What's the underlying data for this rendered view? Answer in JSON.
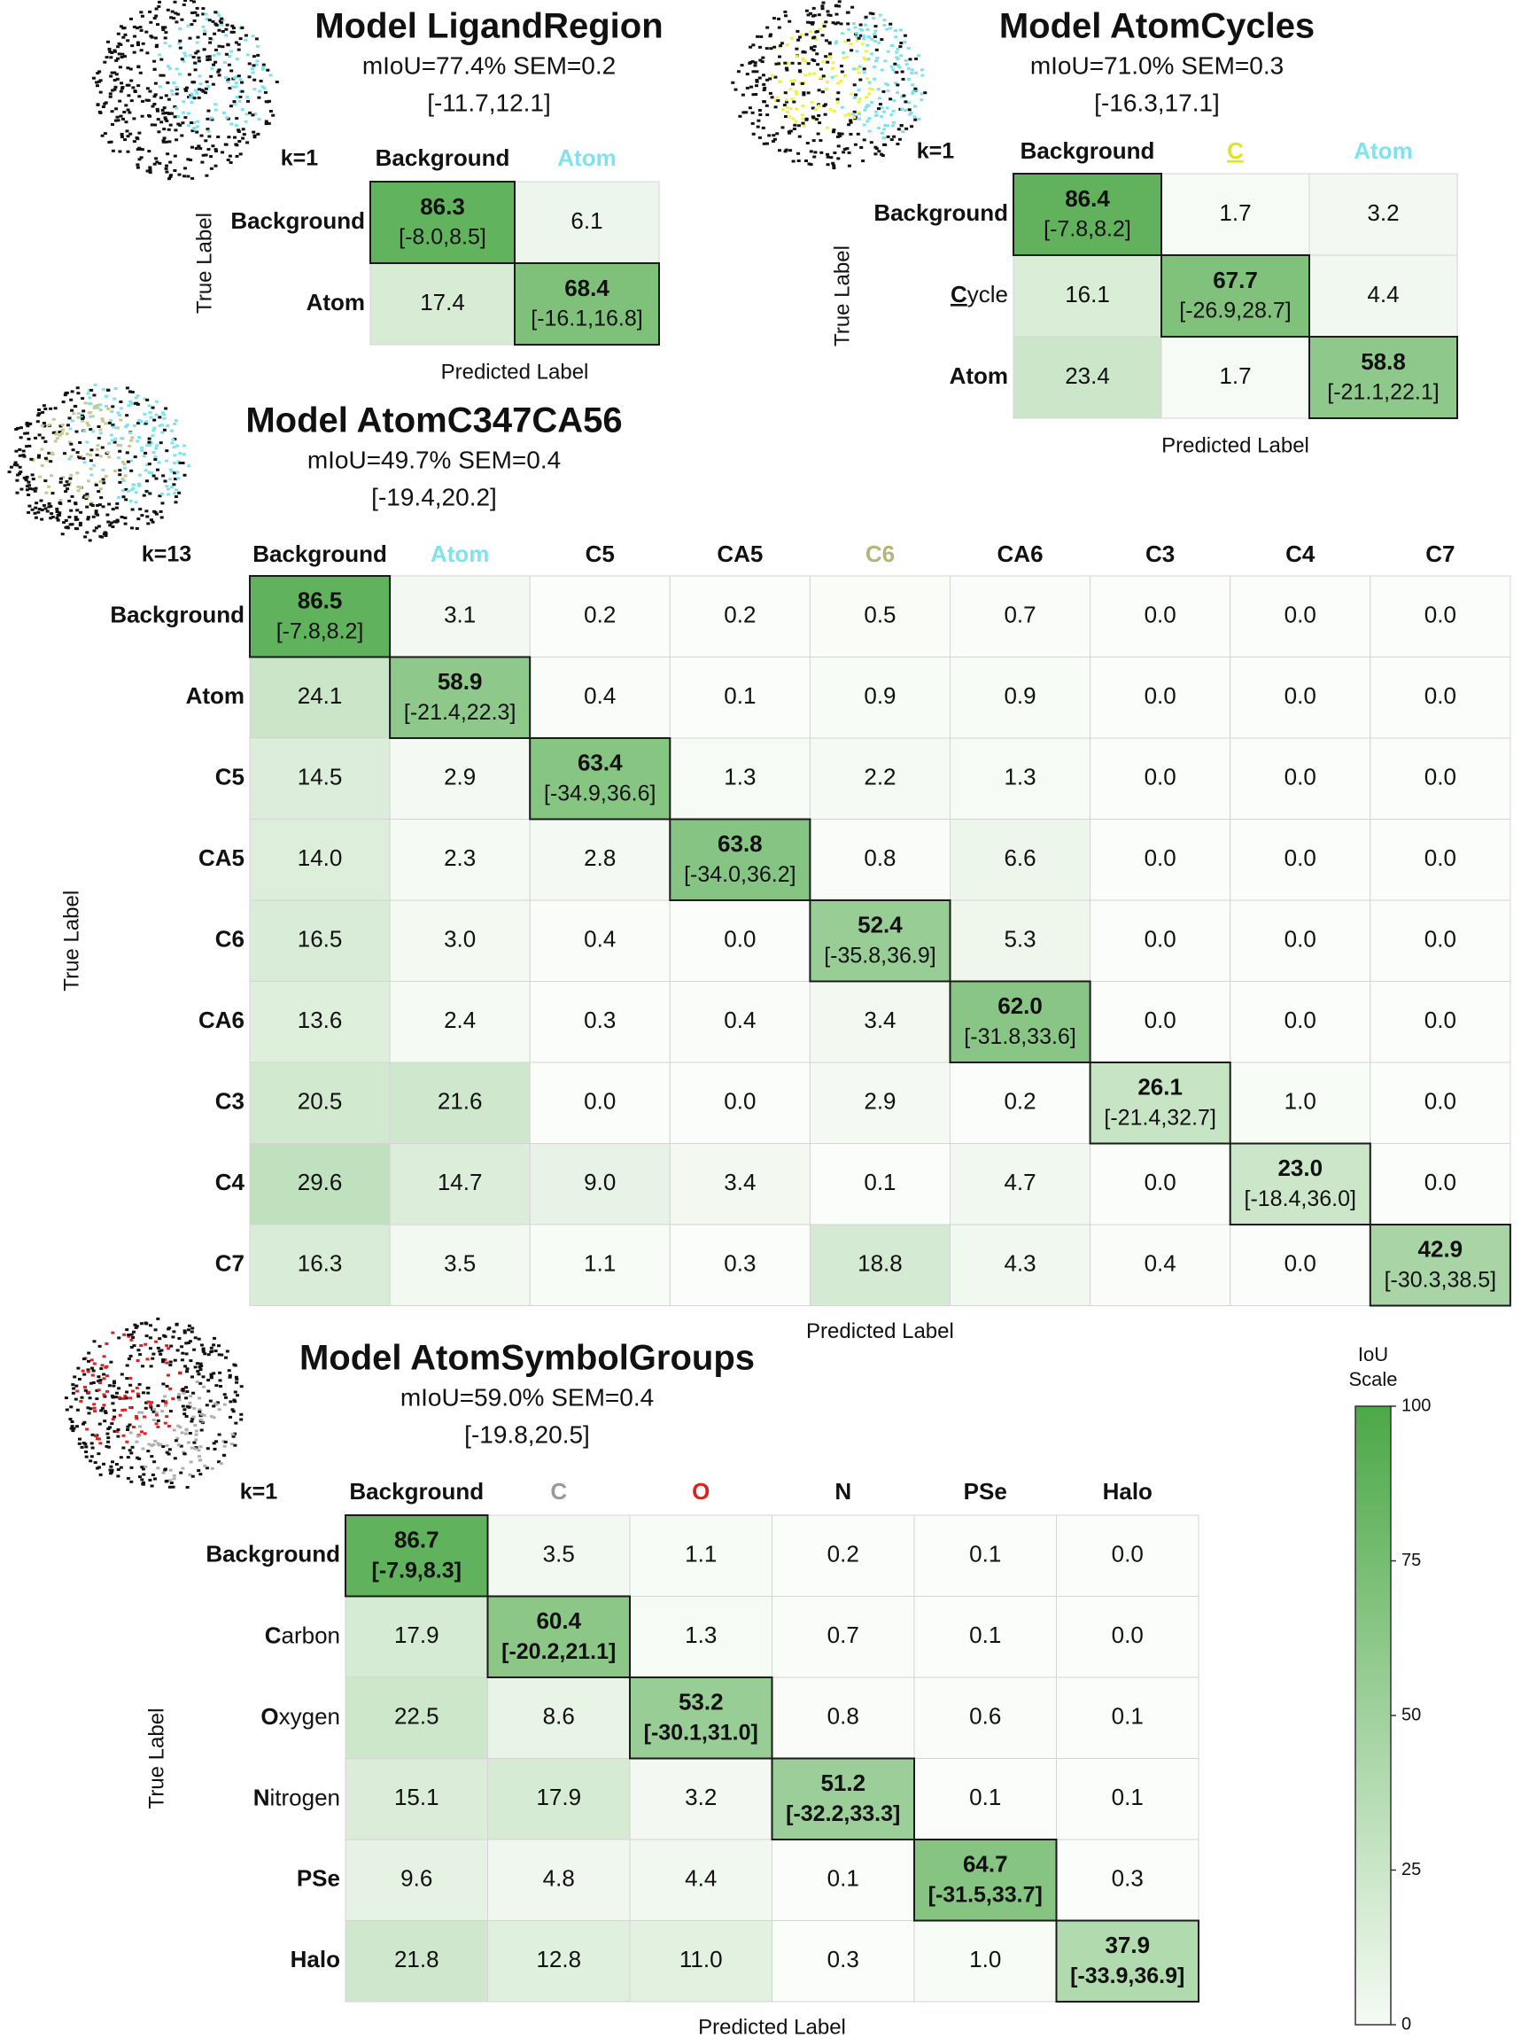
{
  "chart_data": [
    {
      "type": "heatmap",
      "title": "Model LigandRegion",
      "metrics": "mIoU=77.4% SEM=0.2",
      "range": "[-11.7,12.1]",
      "k_label": "k=1",
      "xlabel": "Predicted Label",
      "ylabel": "True Label",
      "columns": [
        {
          "label": "Background",
          "color": "#111111"
        },
        {
          "label": "Atom",
          "color": "#7fe3ee"
        }
      ],
      "rows": [
        {
          "label": "Background"
        },
        {
          "label": "Atom"
        }
      ],
      "values": [
        [
          86.3,
          6.1
        ],
        [
          17.4,
          68.4
        ]
      ],
      "diagonal_ci": [
        "[-8.0,8.5]",
        "[-16.1,16.8]"
      ],
      "diagonal_ci_bold": false
    },
    {
      "type": "heatmap",
      "title": "Model AtomCycles",
      "metrics": "mIoU=71.0% SEM=0.3",
      "range": "[-16.3,17.1]",
      "k_label": "k=1",
      "xlabel": "Predicted Label",
      "ylabel": "True Label",
      "columns": [
        {
          "label": "Background",
          "color": "#111111"
        },
        {
          "label": "C",
          "color": "#e3e322",
          "underline": true
        },
        {
          "label": "Atom",
          "color": "#7fe3ee"
        }
      ],
      "rows": [
        {
          "label": "Background"
        },
        {
          "label": "Cycle",
          "underline_first": true,
          "plain_rest": true
        },
        {
          "label": "Atom"
        }
      ],
      "values": [
        [
          86.4,
          1.7,
          3.2
        ],
        [
          16.1,
          67.7,
          4.4
        ],
        [
          23.4,
          1.7,
          58.8
        ]
      ],
      "diagonal_ci": [
        "[-7.8,8.2]",
        "[-26.9,28.7]",
        "[-21.1,22.1]"
      ],
      "diagonal_ci_bold": false
    },
    {
      "type": "heatmap",
      "title": "Model AtomC347CA56",
      "metrics": "mIoU=49.7% SEM=0.4",
      "range": "[-19.4,20.2]",
      "k_label": "k=13",
      "xlabel": "Predicted Label",
      "ylabel": "True Label",
      "columns": [
        {
          "label": "Background",
          "color": "#111111"
        },
        {
          "label": "Atom",
          "color": "#7fe3ee"
        },
        {
          "label": "C5",
          "color": "#111111"
        },
        {
          "label": "CA5",
          "color": "#111111"
        },
        {
          "label": "C6",
          "color": "#b5b57a"
        },
        {
          "label": "CA6",
          "color": "#111111"
        },
        {
          "label": "C3",
          "color": "#111111"
        },
        {
          "label": "C4",
          "color": "#111111"
        },
        {
          "label": "C7",
          "color": "#111111"
        }
      ],
      "rows": [
        {
          "label": "Background"
        },
        {
          "label": "Atom"
        },
        {
          "label": "C5"
        },
        {
          "label": "CA5"
        },
        {
          "label": "C6"
        },
        {
          "label": "CA6"
        },
        {
          "label": "C3"
        },
        {
          "label": "C4"
        },
        {
          "label": "C7"
        }
      ],
      "values": [
        [
          86.5,
          3.1,
          0.2,
          0.2,
          0.5,
          0.7,
          0.0,
          0.0,
          0.0
        ],
        [
          24.1,
          58.9,
          0.4,
          0.1,
          0.9,
          0.9,
          0.0,
          0.0,
          0.0
        ],
        [
          14.5,
          2.9,
          63.4,
          1.3,
          2.2,
          1.3,
          0.0,
          0.0,
          0.0
        ],
        [
          14.0,
          2.3,
          2.8,
          63.8,
          0.8,
          6.6,
          0.0,
          0.0,
          0.0
        ],
        [
          16.5,
          3.0,
          0.4,
          0.0,
          52.4,
          5.3,
          0.0,
          0.0,
          0.0
        ],
        [
          13.6,
          2.4,
          0.3,
          0.4,
          3.4,
          62.0,
          0.0,
          0.0,
          0.0
        ],
        [
          20.5,
          21.6,
          0.0,
          0.0,
          2.9,
          0.2,
          26.1,
          1.0,
          0.0
        ],
        [
          29.6,
          14.7,
          9.0,
          3.4,
          0.1,
          4.7,
          0.0,
          23.0,
          0.0
        ],
        [
          16.3,
          3.5,
          1.1,
          0.3,
          18.8,
          4.3,
          0.4,
          0.0,
          42.9
        ]
      ],
      "diagonal_ci": [
        "[-7.8,8.2]",
        "[-21.4,22.3]",
        "[-34.9,36.6]",
        "[-34.0,36.2]",
        "[-35.8,36.9]",
        "[-31.8,33.6]",
        "[-21.4,32.7]",
        "[-18.4,36.0]",
        "[-30.3,38.5]"
      ],
      "diagonal_ci_bold": false
    },
    {
      "type": "heatmap",
      "title": "Model AtomSymbolGroups",
      "metrics": "mIoU=59.0% SEM=0.4",
      "range": "[-19.8,20.5]",
      "k_label": "k=1",
      "xlabel": "Predicted Label",
      "ylabel": "True Label",
      "columns": [
        {
          "label": "Background",
          "color": "#111111"
        },
        {
          "label": "C",
          "color": "#9a9a9a"
        },
        {
          "label": "O",
          "color": "#e02020"
        },
        {
          "label": "N",
          "color": "#111111"
        },
        {
          "label": "PSe",
          "color": "#111111"
        },
        {
          "label": "Halo",
          "color": "#111111"
        }
      ],
      "rows": [
        {
          "label": "Background"
        },
        {
          "label": "Carbon",
          "plain_rest": true
        },
        {
          "label": "Oxygen",
          "plain_rest": true
        },
        {
          "label": "Nitrogen",
          "plain_rest": true
        },
        {
          "label": "PSe"
        },
        {
          "label": "Halo"
        }
      ],
      "values": [
        [
          86.7,
          3.5,
          1.1,
          0.2,
          0.1,
          0.0
        ],
        [
          17.9,
          60.4,
          1.3,
          0.7,
          0.1,
          0.0
        ],
        [
          22.5,
          8.6,
          53.2,
          0.8,
          0.6,
          0.1
        ],
        [
          15.1,
          17.9,
          3.2,
          51.2,
          0.1,
          0.1
        ],
        [
          9.6,
          4.8,
          4.4,
          0.1,
          64.7,
          0.3
        ],
        [
          21.8,
          12.8,
          11.0,
          0.3,
          1.0,
          37.9
        ]
      ],
      "diagonal_ci": [
        "[-7.9,8.3]",
        "[-20.2,21.1]",
        "[-30.1,31.0]",
        "[-32.2,33.3]",
        "[-31.5,33.7]",
        "[-33.9,36.9]"
      ],
      "diagonal_ci_bold": true
    }
  ],
  "colorbar": {
    "title_line1": "IoU",
    "title_line2": "Scale",
    "min": 0,
    "max": 100,
    "ticks": [
      0,
      25,
      50,
      75,
      100
    ],
    "color_low": "#f5fbf4",
    "color_high": "#4ca847"
  },
  "colors": {
    "cell_low": "#fbfdfa",
    "cell_high": "#4ca847",
    "grid": "#d4d4d4",
    "cluster_dark": "#111111",
    "cluster_cyan": "#7fe3ee",
    "cluster_yellow": "#f1f14a",
    "cluster_khaki": "#c9c88f",
    "cluster_red": "#e02020",
    "cluster_gray": "#b0b0b0"
  }
}
